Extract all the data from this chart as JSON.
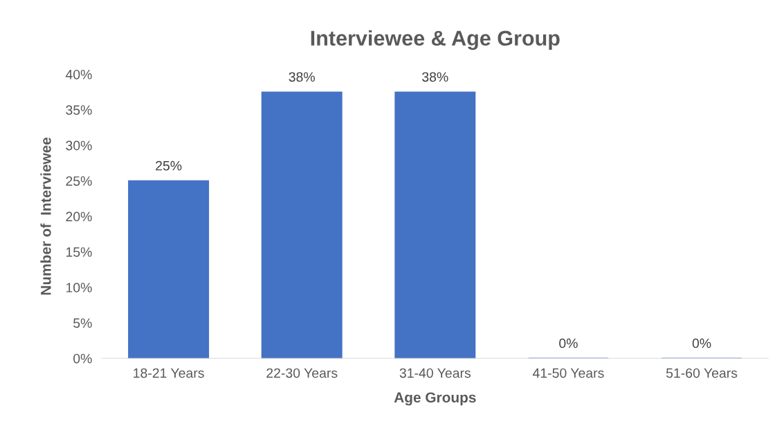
{
  "chart_data": {
    "type": "bar",
    "title": "Interviewee & Age Group",
    "xlabel": "Age Groups",
    "ylabel": "Number of  Interviewee",
    "categories": [
      "18-21 Years",
      "22-30 Years",
      "31-40 Years",
      "41-50 Years",
      "51-60 Years"
    ],
    "values": [
      25,
      37.5,
      37.5,
      0,
      0
    ],
    "value_labels": [
      "25%",
      "38%",
      "38%",
      "0%",
      "0%"
    ],
    "color": "#4472c4",
    "ylim": [
      0,
      40
    ],
    "yticks": [
      {
        "value": 0,
        "label": "0%"
      },
      {
        "value": 5,
        "label": "5%"
      },
      {
        "value": 10,
        "label": "10%"
      },
      {
        "value": 15,
        "label": "15%"
      },
      {
        "value": 20,
        "label": "20%"
      },
      {
        "value": 25,
        "label": "25%"
      },
      {
        "value": 30,
        "label": "30%"
      },
      {
        "value": 35,
        "label": "35%"
      },
      {
        "value": 40,
        "label": "40%"
      }
    ],
    "grid": false,
    "legend": false
  }
}
